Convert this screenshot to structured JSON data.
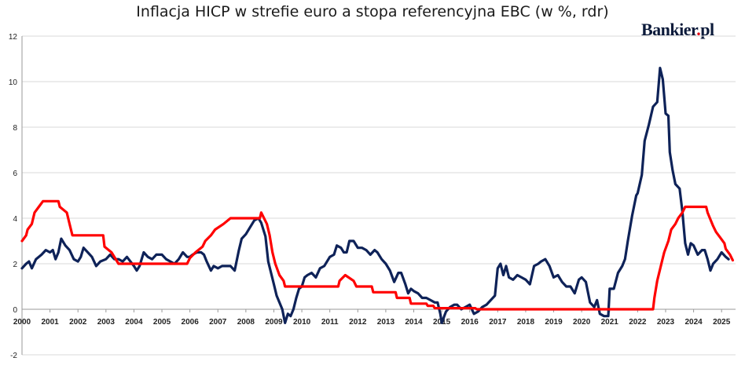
{
  "chart_data": {
    "type": "line",
    "title": "Inflacja HICP w strefie euro a stopa referencyjna EBC (w %, rdr)",
    "logo": "Bankier.pl",
    "colors": {
      "hicp": "#0e2258",
      "ecb": "#ff0000",
      "grid": "#d9d9d9"
    },
    "ylim": [
      -2,
      12
    ],
    "yticks": [
      -2,
      0,
      2,
      4,
      6,
      8,
      10,
      12
    ],
    "xlim": [
      2000,
      2025.5
    ],
    "xticks": [
      "2000",
      "2001",
      "2002",
      "2003",
      "2004",
      "2005",
      "2006",
      "2007",
      "2008",
      "2009",
      "2010",
      "2011",
      "2012",
      "2013",
      "2014",
      "2015",
      "2016",
      "2017",
      "2018",
      "2019",
      "2020",
      "2021",
      "2022",
      "2023",
      "2024",
      "2025"
    ],
    "series": [
      {
        "id": "hicp",
        "points": [
          [
            2000.0,
            1.8
          ],
          [
            2000.15,
            2.0
          ],
          [
            2000.25,
            2.1
          ],
          [
            2000.35,
            1.8
          ],
          [
            2000.5,
            2.2
          ],
          [
            2000.7,
            2.4
          ],
          [
            2000.85,
            2.6
          ],
          [
            2001.0,
            2.5
          ],
          [
            2001.1,
            2.6
          ],
          [
            2001.2,
            2.2
          ],
          [
            2001.3,
            2.5
          ],
          [
            2001.4,
            3.1
          ],
          [
            2001.55,
            2.8
          ],
          [
            2001.7,
            2.6
          ],
          [
            2001.85,
            2.2
          ],
          [
            2002.0,
            2.1
          ],
          [
            2002.1,
            2.3
          ],
          [
            2002.2,
            2.7
          ],
          [
            2002.35,
            2.5
          ],
          [
            2002.5,
            2.3
          ],
          [
            2002.65,
            1.9
          ],
          [
            2002.8,
            2.1
          ],
          [
            2003.0,
            2.2
          ],
          [
            2003.15,
            2.4
          ],
          [
            2003.3,
            2.2
          ],
          [
            2003.45,
            2.2
          ],
          [
            2003.6,
            2.1
          ],
          [
            2003.75,
            2.3
          ],
          [
            2004.0,
            1.9
          ],
          [
            2004.1,
            1.7
          ],
          [
            2004.2,
            1.9
          ],
          [
            2004.35,
            2.5
          ],
          [
            2004.5,
            2.3
          ],
          [
            2004.65,
            2.2
          ],
          [
            2004.8,
            2.4
          ],
          [
            2005.0,
            2.4
          ],
          [
            2005.15,
            2.2
          ],
          [
            2005.3,
            2.1
          ],
          [
            2005.45,
            2.0
          ],
          [
            2005.6,
            2.2
          ],
          [
            2005.75,
            2.5
          ],
          [
            2005.9,
            2.3
          ],
          [
            2006.0,
            2.3
          ],
          [
            2006.1,
            2.4
          ],
          [
            2006.25,
            2.5
          ],
          [
            2006.4,
            2.5
          ],
          [
            2006.5,
            2.4
          ],
          [
            2006.6,
            2.1
          ],
          [
            2006.75,
            1.7
          ],
          [
            2006.85,
            1.9
          ],
          [
            2007.0,
            1.8
          ],
          [
            2007.15,
            1.9
          ],
          [
            2007.3,
            1.9
          ],
          [
            2007.45,
            1.9
          ],
          [
            2007.6,
            1.7
          ],
          [
            2007.75,
            2.6
          ],
          [
            2007.85,
            3.1
          ],
          [
            2008.0,
            3.3
          ],
          [
            2008.15,
            3.6
          ],
          [
            2008.3,
            3.9
          ],
          [
            2008.45,
            4.0
          ],
          [
            2008.55,
            3.8
          ],
          [
            2008.7,
            3.2
          ],
          [
            2008.8,
            2.1
          ],
          [
            2008.9,
            1.6
          ],
          [
            2009.0,
            1.1
          ],
          [
            2009.1,
            0.6
          ],
          [
            2009.3,
            0.0
          ],
          [
            2009.4,
            -0.6
          ],
          [
            2009.5,
            -0.2
          ],
          [
            2009.6,
            -0.3
          ],
          [
            2009.7,
            0.0
          ],
          [
            2009.8,
            0.5
          ],
          [
            2009.9,
            0.9
          ],
          [
            2010.0,
            1.0
          ],
          [
            2010.1,
            1.4
          ],
          [
            2010.2,
            1.5
          ],
          [
            2010.35,
            1.6
          ],
          [
            2010.5,
            1.4
          ],
          [
            2010.65,
            1.8
          ],
          [
            2010.8,
            1.9
          ],
          [
            2011.0,
            2.3
          ],
          [
            2011.15,
            2.4
          ],
          [
            2011.25,
            2.8
          ],
          [
            2011.4,
            2.7
          ],
          [
            2011.5,
            2.5
          ],
          [
            2011.6,
            2.5
          ],
          [
            2011.7,
            3.0
          ],
          [
            2011.85,
            3.0
          ],
          [
            2012.0,
            2.7
          ],
          [
            2012.15,
            2.7
          ],
          [
            2012.3,
            2.6
          ],
          [
            2012.45,
            2.4
          ],
          [
            2012.6,
            2.6
          ],
          [
            2012.7,
            2.5
          ],
          [
            2012.85,
            2.2
          ],
          [
            2013.0,
            2.0
          ],
          [
            2013.15,
            1.7
          ],
          [
            2013.3,
            1.2
          ],
          [
            2013.45,
            1.6
          ],
          [
            2013.55,
            1.6
          ],
          [
            2013.7,
            1.1
          ],
          [
            2013.8,
            0.7
          ],
          [
            2013.9,
            0.9
          ],
          [
            2014.0,
            0.8
          ],
          [
            2014.15,
            0.7
          ],
          [
            2014.3,
            0.5
          ],
          [
            2014.45,
            0.5
          ],
          [
            2014.6,
            0.4
          ],
          [
            2014.75,
            0.3
          ],
          [
            2014.85,
            0.3
          ],
          [
            2014.95,
            -0.2
          ],
          [
            2015.0,
            -0.6
          ],
          [
            2015.15,
            -0.1
          ],
          [
            2015.3,
            0.1
          ],
          [
            2015.45,
            0.2
          ],
          [
            2015.55,
            0.2
          ],
          [
            2015.7,
            0.0
          ],
          [
            2015.85,
            0.1
          ],
          [
            2016.0,
            0.2
          ],
          [
            2016.15,
            -0.2
          ],
          [
            2016.3,
            -0.1
          ],
          [
            2016.45,
            0.1
          ],
          [
            2016.6,
            0.2
          ],
          [
            2016.75,
            0.4
          ],
          [
            2016.9,
            0.6
          ],
          [
            2017.0,
            1.8
          ],
          [
            2017.1,
            2.0
          ],
          [
            2017.2,
            1.5
          ],
          [
            2017.3,
            1.9
          ],
          [
            2017.4,
            1.4
          ],
          [
            2017.55,
            1.3
          ],
          [
            2017.7,
            1.5
          ],
          [
            2017.85,
            1.4
          ],
          [
            2018.0,
            1.3
          ],
          [
            2018.15,
            1.1
          ],
          [
            2018.3,
            1.9
          ],
          [
            2018.45,
            2.0
          ],
          [
            2018.55,
            2.1
          ],
          [
            2018.7,
            2.2
          ],
          [
            2018.85,
            1.9
          ],
          [
            2019.0,
            1.4
          ],
          [
            2019.15,
            1.5
          ],
          [
            2019.3,
            1.2
          ],
          [
            2019.45,
            1.0
          ],
          [
            2019.6,
            1.0
          ],
          [
            2019.75,
            0.7
          ],
          [
            2019.9,
            1.3
          ],
          [
            2020.0,
            1.4
          ],
          [
            2020.15,
            1.2
          ],
          [
            2020.3,
            0.3
          ],
          [
            2020.45,
            0.1
          ],
          [
            2020.55,
            0.4
          ],
          [
            2020.65,
            -0.2
          ],
          [
            2020.8,
            -0.3
          ],
          [
            2020.95,
            -0.3
          ],
          [
            2021.0,
            0.9
          ],
          [
            2021.15,
            0.9
          ],
          [
            2021.3,
            1.6
          ],
          [
            2021.45,
            1.9
          ],
          [
            2021.55,
            2.2
          ],
          [
            2021.65,
            3.0
          ],
          [
            2021.8,
            4.1
          ],
          [
            2021.95,
            5.0
          ],
          [
            2022.0,
            5.1
          ],
          [
            2022.15,
            5.9
          ],
          [
            2022.25,
            7.4
          ],
          [
            2022.4,
            8.1
          ],
          [
            2022.55,
            8.9
          ],
          [
            2022.7,
            9.1
          ],
          [
            2022.8,
            10.6
          ],
          [
            2022.9,
            10.1
          ],
          [
            2023.0,
            8.6
          ],
          [
            2023.1,
            8.5
          ],
          [
            2023.15,
            6.9
          ],
          [
            2023.25,
            6.1
          ],
          [
            2023.35,
            5.5
          ],
          [
            2023.5,
            5.3
          ],
          [
            2023.6,
            4.3
          ],
          [
            2023.7,
            2.9
          ],
          [
            2023.8,
            2.4
          ],
          [
            2023.9,
            2.9
          ],
          [
            2024.0,
            2.8
          ],
          [
            2024.15,
            2.4
          ],
          [
            2024.3,
            2.6
          ],
          [
            2024.4,
            2.6
          ],
          [
            2024.5,
            2.2
          ],
          [
            2024.6,
            1.7
          ],
          [
            2024.7,
            2.0
          ],
          [
            2024.85,
            2.2
          ],
          [
            2025.0,
            2.5
          ],
          [
            2025.15,
            2.3
          ],
          [
            2025.25,
            2.2
          ]
        ]
      },
      {
        "id": "ecb",
        "points": [
          [
            2000.0,
            3.0
          ],
          [
            2000.15,
            3.25
          ],
          [
            2000.2,
            3.5
          ],
          [
            2000.35,
            3.75
          ],
          [
            2000.45,
            4.25
          ],
          [
            2000.6,
            4.5
          ],
          [
            2000.75,
            4.75
          ],
          [
            2001.3,
            4.75
          ],
          [
            2001.35,
            4.5
          ],
          [
            2001.6,
            4.25
          ],
          [
            2001.7,
            3.75
          ],
          [
            2001.8,
            3.25
          ],
          [
            2002.9,
            3.25
          ],
          [
            2002.95,
            2.75
          ],
          [
            2003.2,
            2.5
          ],
          [
            2003.45,
            2.0
          ],
          [
            2005.9,
            2.0
          ],
          [
            2006.0,
            2.25
          ],
          [
            2006.2,
            2.5
          ],
          [
            2006.45,
            2.75
          ],
          [
            2006.55,
            3.0
          ],
          [
            2006.75,
            3.25
          ],
          [
            2006.9,
            3.5
          ],
          [
            2007.2,
            3.75
          ],
          [
            2007.45,
            4.0
          ],
          [
            2008.5,
            4.0
          ],
          [
            2008.55,
            4.25
          ],
          [
            2008.75,
            3.75
          ],
          [
            2008.85,
            3.25
          ],
          [
            2008.95,
            2.5
          ],
          [
            2009.05,
            2.0
          ],
          [
            2009.2,
            1.5
          ],
          [
            2009.35,
            1.25
          ],
          [
            2009.4,
            1.0
          ],
          [
            2011.3,
            1.0
          ],
          [
            2011.35,
            1.25
          ],
          [
            2011.55,
            1.5
          ],
          [
            2011.85,
            1.25
          ],
          [
            2011.95,
            1.0
          ],
          [
            2012.5,
            1.0
          ],
          [
            2012.55,
            0.75
          ],
          [
            2013.35,
            0.75
          ],
          [
            2013.4,
            0.5
          ],
          [
            2013.85,
            0.5
          ],
          [
            2013.9,
            0.25
          ],
          [
            2014.45,
            0.25
          ],
          [
            2014.5,
            0.15
          ],
          [
            2014.7,
            0.15
          ],
          [
            2014.75,
            0.05
          ],
          [
            2016.2,
            0.05
          ],
          [
            2016.25,
            0.0
          ],
          [
            2022.55,
            0.0
          ],
          [
            2022.6,
            0.5
          ],
          [
            2022.7,
            1.25
          ],
          [
            2022.85,
            2.0
          ],
          [
            2022.95,
            2.5
          ],
          [
            2023.1,
            3.0
          ],
          [
            2023.2,
            3.5
          ],
          [
            2023.35,
            3.75
          ],
          [
            2023.45,
            4.0
          ],
          [
            2023.6,
            4.25
          ],
          [
            2023.7,
            4.5
          ],
          [
            2024.45,
            4.5
          ],
          [
            2024.5,
            4.25
          ],
          [
            2024.7,
            3.65
          ],
          [
            2024.8,
            3.4
          ],
          [
            2024.95,
            3.15
          ],
          [
            2025.1,
            2.9
          ],
          [
            2025.15,
            2.65
          ],
          [
            2025.3,
            2.4
          ],
          [
            2025.4,
            2.15
          ]
        ]
      }
    ]
  }
}
